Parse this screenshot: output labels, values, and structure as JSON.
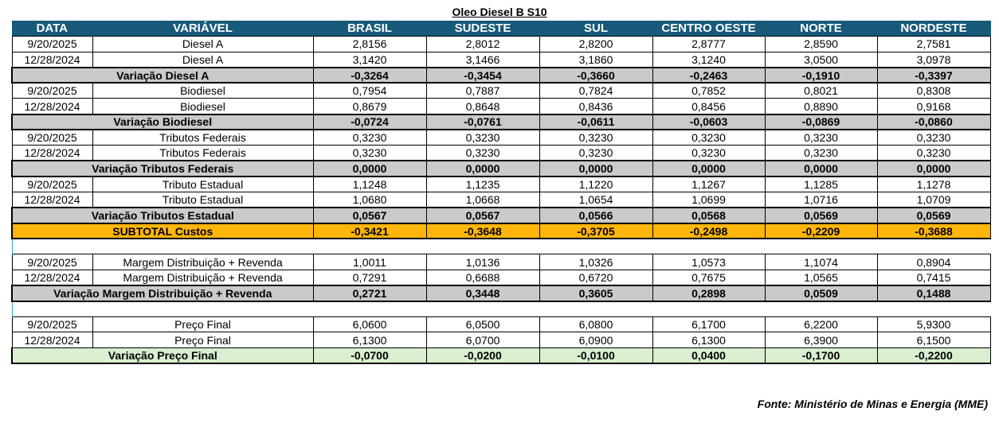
{
  "title": "Oleo Diesel B S10",
  "headers": [
    "DATA",
    "VARIÁVEL",
    "BRASIL",
    "SUDESTE",
    "SUL",
    "CENTRO OESTE",
    "NORTE",
    "NORDESTE"
  ],
  "colors": {
    "header": "#175a7a",
    "variation": "#cacaca",
    "subtotal": "#ffb60a",
    "final": "#d9efcf"
  },
  "rows": [
    {
      "type": "d",
      "date": "9/20/2025",
      "var": "Diesel A",
      "values": [
        "2,8156",
        "2,8012",
        "2,8200",
        "2,8777",
        "2,8590",
        "2,7581"
      ]
    },
    {
      "type": "d",
      "date": "12/28/2024",
      "var": "Diesel A",
      "values": [
        "3,1420",
        "3,1466",
        "3,1860",
        "3,1240",
        "3,0500",
        "3,0978"
      ]
    },
    {
      "type": "v",
      "label": "Variação Diesel A",
      "values": [
        "-0,3264",
        "-0,3454",
        "-0,3660",
        "-0,2463",
        "-0,1910",
        "-0,3397"
      ]
    },
    {
      "type": "d",
      "date": "9/20/2025",
      "var": "Biodiesel",
      "values": [
        "0,7954",
        "0,7887",
        "0,7824",
        "0,7852",
        "0,8021",
        "0,8308"
      ]
    },
    {
      "type": "d",
      "date": "12/28/2024",
      "var": "Biodiesel",
      "values": [
        "0,8679",
        "0,8648",
        "0,8436",
        "0,8456",
        "0,8890",
        "0,9168"
      ]
    },
    {
      "type": "v",
      "label": "Variação Biodiesel",
      "values": [
        "-0,0724",
        "-0,0761",
        "-0,0611",
        "-0,0603",
        "-0,0869",
        "-0,0860"
      ]
    },
    {
      "type": "d",
      "date": "9/20/2025",
      "var": "Tributos Federais",
      "values": [
        "0,3230",
        "0,3230",
        "0,3230",
        "0,3230",
        "0,3230",
        "0,3230"
      ]
    },
    {
      "type": "d",
      "date": "12/28/2024",
      "var": "Tributos Federais",
      "values": [
        "0,3230",
        "0,3230",
        "0,3230",
        "0,3230",
        "0,3230",
        "0,3230"
      ]
    },
    {
      "type": "v",
      "label": "Variação Tributos Federais",
      "values": [
        "0,0000",
        "0,0000",
        "0,0000",
        "0,0000",
        "0,0000",
        "0,0000"
      ]
    },
    {
      "type": "d",
      "date": "9/20/2025",
      "var": "Tributo Estadual",
      "values": [
        "1,1248",
        "1,1235",
        "1,1220",
        "1,1267",
        "1,1285",
        "1,1278"
      ]
    },
    {
      "type": "d",
      "date": "12/28/2024",
      "var": "Tributo Estadual",
      "values": [
        "1,0680",
        "1,0668",
        "1,0654",
        "1,0699",
        "1,0716",
        "1,0709"
      ]
    },
    {
      "type": "v",
      "label": "Variação Tributos Estadual",
      "values": [
        "0,0567",
        "0,0567",
        "0,0566",
        "0,0568",
        "0,0569",
        "0,0569"
      ]
    },
    {
      "type": "s",
      "label": "SUBTOTAL Custos",
      "values": [
        "-0,3421",
        "-0,3648",
        "-0,3705",
        "-0,2498",
        "-0,2209",
        "-0,3688"
      ]
    },
    {
      "type": "b"
    },
    {
      "type": "d",
      "date": "9/20/2025",
      "var": "Margem Distribuição + Revenda",
      "values": [
        "1,0011",
        "1,0136",
        "1,0326",
        "1,0573",
        "1,1074",
        "0,8904"
      ]
    },
    {
      "type": "d",
      "date": "12/28/2024",
      "var": "Margem Distribuição + Revenda",
      "values": [
        "0,7291",
        "0,6688",
        "0,6720",
        "0,7675",
        "1,0565",
        "0,7415"
      ]
    },
    {
      "type": "v",
      "label": "Variação Margem Distribuição + Revenda",
      "values": [
        "0,2721",
        "0,3448",
        "0,3605",
        "0,2898",
        "0,0509",
        "0,1488"
      ]
    },
    {
      "type": "b"
    },
    {
      "type": "d",
      "date": "9/20/2025",
      "var": "Preço Final",
      "values": [
        "6,0600",
        "6,0500",
        "6,0800",
        "6,1700",
        "6,2200",
        "5,9300"
      ]
    },
    {
      "type": "d",
      "date": "12/28/2024",
      "var": "Preço Final",
      "values": [
        "6,1300",
        "6,0700",
        "6,0900",
        "6,1300",
        "6,3900",
        "6,1500"
      ]
    },
    {
      "type": "f",
      "label": "Variação Preço Final",
      "values": [
        "-0,0700",
        "-0,0200",
        "-0,0100",
        "0,0400",
        "-0,1700",
        "-0,2200"
      ]
    }
  ],
  "source": "Fonte: Ministério de Minas e Energia (MME)"
}
